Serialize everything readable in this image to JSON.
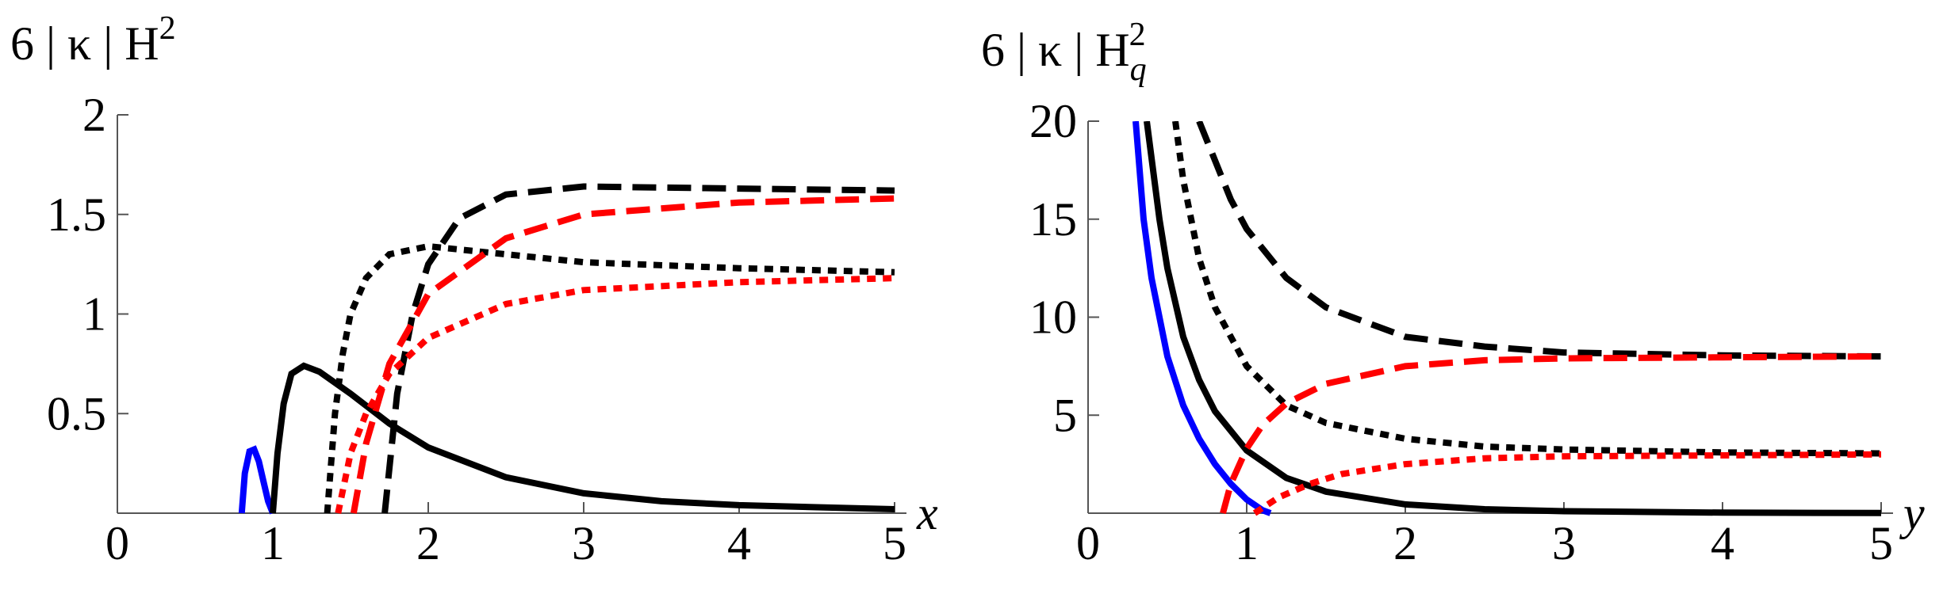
{
  "chart_data": [
    {
      "type": "line",
      "ylabel": {
        "text": "6 | κ | H",
        "sup": "2"
      },
      "xlabel": "x",
      "xlim": [
        0,
        5
      ],
      "ylim": [
        0,
        2
      ],
      "xticks": [
        0,
        1,
        2,
        3,
        4,
        5
      ],
      "yticks": [
        0.5,
        1,
        1.5,
        2
      ],
      "series": [
        {
          "color": "#0000ff",
          "style": "solid",
          "x": [
            0.8,
            0.82,
            0.85,
            0.88,
            0.91,
            0.94,
            0.97,
            1.0
          ],
          "values": [
            0,
            0.2,
            0.31,
            0.32,
            0.26,
            0.16,
            0.06,
            0
          ]
        },
        {
          "color": "#000000",
          "style": "solid",
          "x": [
            1,
            1.03,
            1.07,
            1.12,
            1.2,
            1.3,
            1.5,
            1.75,
            2,
            2.5,
            3,
            3.5,
            4,
            4.5,
            5
          ],
          "values": [
            0,
            0.3,
            0.55,
            0.7,
            0.74,
            0.71,
            0.6,
            0.45,
            0.33,
            0.18,
            0.1,
            0.06,
            0.04,
            0.03,
            0.02
          ]
        },
        {
          "color": "#000000",
          "style": "dotted",
          "x": [
            1.35,
            1.4,
            1.45,
            1.5,
            1.6,
            1.75,
            2,
            2.5,
            3,
            4,
            5
          ],
          "values": [
            0,
            0.5,
            0.8,
            1.0,
            1.18,
            1.3,
            1.34,
            1.3,
            1.26,
            1.23,
            1.21
          ]
        },
        {
          "color": "#000000",
          "style": "dashed",
          "x": [
            1.72,
            1.8,
            1.9,
            2,
            2.2,
            2.5,
            3,
            4,
            5
          ],
          "values": [
            0,
            0.6,
            1.0,
            1.25,
            1.48,
            1.6,
            1.64,
            1.63,
            1.62
          ]
        },
        {
          "color": "#ff0000",
          "style": "dotted",
          "x": [
            1.42,
            1.5,
            1.6,
            1.75,
            2,
            2.5,
            3,
            4,
            5
          ],
          "values": [
            0,
            0.3,
            0.5,
            0.7,
            0.88,
            1.05,
            1.12,
            1.16,
            1.18
          ]
        },
        {
          "color": "#ff0000",
          "style": "dashed",
          "x": [
            1.52,
            1.6,
            1.75,
            2,
            2.5,
            3,
            4,
            5
          ],
          "values": [
            0,
            0.35,
            0.75,
            1.1,
            1.38,
            1.5,
            1.56,
            1.58
          ]
        }
      ]
    },
    {
      "type": "line",
      "ylabel": {
        "text": "6 | κ | H",
        "sub": "q",
        "sup": "2"
      },
      "xlabel": "y",
      "xlim": [
        0,
        5
      ],
      "ylim": [
        0,
        20
      ],
      "xticks": [
        0,
        1,
        2,
        3,
        4,
        5
      ],
      "yticks": [
        5,
        10,
        15,
        20
      ],
      "series": [
        {
          "color": "#0000ff",
          "style": "solid",
          "x": [
            0.3,
            0.35,
            0.4,
            0.5,
            0.6,
            0.7,
            0.8,
            0.9,
            1.0,
            1.1,
            1.15
          ],
          "values": [
            20,
            15,
            12,
            8,
            5.5,
            3.8,
            2.5,
            1.5,
            0.7,
            0.15,
            0
          ]
        },
        {
          "color": "#000000",
          "style": "solid",
          "x": [
            0.37,
            0.45,
            0.5,
            0.6,
            0.7,
            0.8,
            1,
            1.25,
            1.5,
            2,
            2.5,
            3,
            4,
            5
          ],
          "values": [
            20,
            15,
            12.5,
            9,
            6.8,
            5.2,
            3.2,
            1.8,
            1.1,
            0.45,
            0.2,
            0.1,
            0.03,
            0.01
          ]
        },
        {
          "color": "#000000",
          "style": "dotted",
          "x": [
            0.55,
            0.6,
            0.7,
            0.8,
            1,
            1.25,
            1.5,
            2,
            2.5,
            3,
            4,
            5
          ],
          "values": [
            20,
            17,
            13,
            10.5,
            7.5,
            5.5,
            4.6,
            3.8,
            3.4,
            3.25,
            3.1,
            3.05
          ]
        },
        {
          "color": "#000000",
          "style": "dashed",
          "x": [
            0.7,
            0.8,
            0.9,
            1,
            1.25,
            1.5,
            2,
            2.5,
            3,
            4,
            5
          ],
          "values": [
            20,
            18,
            16,
            14.5,
            12,
            10.5,
            9,
            8.5,
            8.2,
            8.05,
            8.0
          ]
        },
        {
          "color": "#ff0000",
          "style": "dashed",
          "x": [
            0.85,
            0.9,
            1,
            1.1,
            1.25,
            1.5,
            2,
            2.5,
            3,
            4,
            5
          ],
          "values": [
            0,
            1.5,
            3.3,
            4.5,
            5.6,
            6.6,
            7.5,
            7.8,
            7.9,
            7.95,
            8.0
          ]
        },
        {
          "color": "#ff0000",
          "style": "dotted",
          "x": [
            1.05,
            1.2,
            1.4,
            1.6,
            2,
            2.5,
            3,
            4,
            5
          ],
          "values": [
            0,
            0.8,
            1.5,
            2,
            2.5,
            2.8,
            2.9,
            2.95,
            3.0
          ]
        }
      ]
    }
  ]
}
